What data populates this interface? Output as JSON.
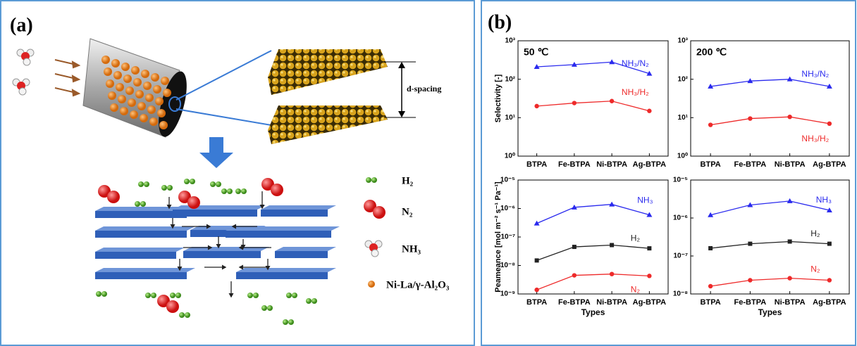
{
  "panel_a": {
    "label": "(a)",
    "d_spacing": "d-spacing",
    "legend": [
      "H₂",
      "N₂",
      "NH₃",
      "Ni-La/γ-Al₂O₃"
    ]
  },
  "panel_b": {
    "label": "(b)"
  },
  "chart_data": [
    {
      "type": "line",
      "title": "50 ℃",
      "y_label": "Selectivity [-]",
      "log_y": true,
      "categories": [
        "BTPA",
        "Fe-BTPA",
        "Ni-BTPA",
        "Ag-BTPA"
      ],
      "ylim": [
        1,
        1000
      ],
      "yticks": [
        {
          "value": 1,
          "label": "10⁰"
        },
        {
          "value": 10,
          "label": "10¹"
        },
        {
          "value": 100,
          "label": "10²"
        },
        {
          "value": 1000,
          "label": "10³"
        }
      ],
      "series": [
        {
          "name": "NH₃/N₂",
          "color": "#2a2aee",
          "marker": "triangle",
          "values": [
            210,
            240,
            280,
            140
          ]
        },
        {
          "name": "NH₃/H₂",
          "color": "#ee2a2a",
          "marker": "circle",
          "values": [
            20,
            24,
            27,
            15
          ]
        }
      ]
    },
    {
      "type": "line",
      "title": "200 ℃",
      "log_y": true,
      "categories": [
        "BTPA",
        "Fe-BTPA",
        "Ni-BTPA",
        "Ag-BTPA"
      ],
      "ylim": [
        1,
        1000
      ],
      "yticks": [
        {
          "value": 1,
          "label": "10⁰"
        },
        {
          "value": 10,
          "label": "10¹"
        },
        {
          "value": 100,
          "label": "10²"
        },
        {
          "value": 1000,
          "label": "10³"
        }
      ],
      "series": [
        {
          "name": "NH₃/N₂",
          "color": "#2a2aee",
          "marker": "triangle",
          "values": [
            65,
            90,
            100,
            65
          ]
        },
        {
          "name": "NH₃/H₂",
          "color": "#ee2a2a",
          "marker": "circle",
          "values": [
            6.5,
            9.5,
            10.5,
            7
          ]
        }
      ]
    },
    {
      "type": "line",
      "y_label": "Peameance [mol m⁻² s⁻¹ Pa⁻¹]",
      "x_label": "Types",
      "log_y": true,
      "categories": [
        "BTPA",
        "Fe-BTPA",
        "Ni-BTPA",
        "Ag-BTPA"
      ],
      "ylim": [
        1e-09,
        1e-05
      ],
      "yticks": [
        {
          "value": 1e-09,
          "label": "10⁻⁹"
        },
        {
          "value": 1e-08,
          "label": "10⁻⁸"
        },
        {
          "value": 1e-07,
          "label": "10⁻⁷"
        },
        {
          "value": 1e-06,
          "label": "10⁻⁶"
        },
        {
          "value": 1e-05,
          "label": "10⁻⁵"
        }
      ],
      "series": [
        {
          "name": "NH₃",
          "color": "#2a2aee",
          "marker": "triangle",
          "values": [
            3e-07,
            1.1e-06,
            1.4e-06,
            6e-07
          ]
        },
        {
          "name": "H₂",
          "color": "#222222",
          "marker": "square",
          "values": [
            1.5e-08,
            4.5e-08,
            5.2e-08,
            4e-08
          ]
        },
        {
          "name": "N₂",
          "color": "#ee2a2a",
          "marker": "circle",
          "values": [
            1.4e-09,
            4.5e-09,
            5e-09,
            4.3e-09
          ]
        }
      ]
    },
    {
      "type": "line",
      "x_label": "Types",
      "log_y": true,
      "categories": [
        "BTPA",
        "Fe-BTPA",
        "Ni-BTPA",
        "Ag-BTPA"
      ],
      "ylim": [
        1e-08,
        1e-05
      ],
      "yticks": [
        {
          "value": 1e-08,
          "label": "10⁻⁸"
        },
        {
          "value": 1e-07,
          "label": "10⁻⁷"
        },
        {
          "value": 1e-06,
          "label": "10⁻⁶"
        },
        {
          "value": 1e-05,
          "label": "10⁻⁵"
        }
      ],
      "series": [
        {
          "name": "NH₃",
          "color": "#2a2aee",
          "marker": "triangle",
          "values": [
            1.2e-06,
            2.2e-06,
            2.8e-06,
            1.6e-06
          ]
        },
        {
          "name": "H₂",
          "color": "#222222",
          "marker": "square",
          "values": [
            1.6e-07,
            2.1e-07,
            2.4e-07,
            2.1e-07
          ]
        },
        {
          "name": "N₂",
          "color": "#ee2a2a",
          "marker": "circle",
          "values": [
            1.6e-08,
            2.3e-08,
            2.6e-08,
            2.3e-08
          ]
        }
      ]
    }
  ]
}
